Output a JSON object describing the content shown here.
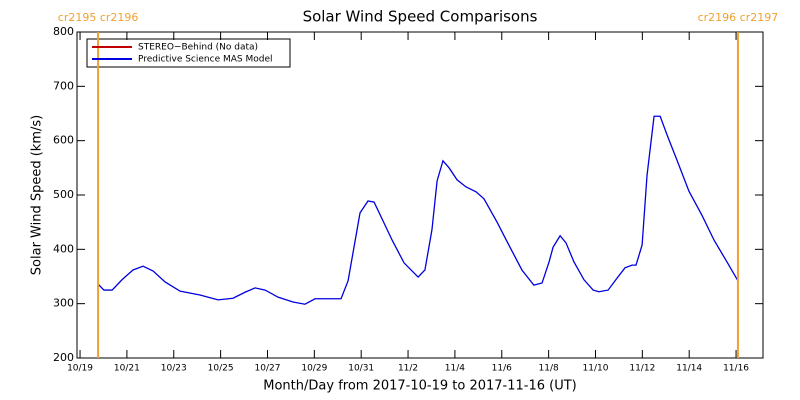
{
  "chart_data": {
    "type": "line",
    "title": "Solar Wind Speed Comparisons",
    "x_label": "Month/Day from 2017-10-19 to 2017-11-16 (UT)",
    "y_label": "Solar Wind Speed (km/s)",
    "xlim": [
      -0.13,
      29.15
    ],
    "xticks": [
      {
        "value": 0,
        "label": "10/19"
      },
      {
        "value": 2,
        "label": "10/21"
      },
      {
        "value": 4,
        "label": "10/23"
      },
      {
        "value": 6,
        "label": "10/25"
      },
      {
        "value": 8,
        "label": "10/27"
      },
      {
        "value": 10,
        "label": "10/29"
      },
      {
        "value": 12,
        "label": "10/31"
      },
      {
        "value": 14,
        "label": "11/2"
      },
      {
        "value": 16,
        "label": "11/4"
      },
      {
        "value": 18,
        "label": "11/6"
      },
      {
        "value": 20,
        "label": "11/8"
      },
      {
        "value": 22,
        "label": "11/10"
      },
      {
        "value": 24,
        "label": "11/12"
      },
      {
        "value": 26,
        "label": "11/14"
      },
      {
        "value": 28,
        "label": "11/16"
      }
    ],
    "ylim": [
      200,
      800
    ],
    "yticks": [
      200,
      300,
      400,
      500,
      600,
      700,
      800
    ],
    "legend": "upper left",
    "annotations": [
      {
        "text": "cr2195 cr2196",
        "x": 0.77,
        "color": "#f0a030"
      },
      {
        "text": "cr2196 cr2197",
        "x": 28.08,
        "color": "#f0a030"
      }
    ],
    "x": [
      0.77,
      1.02,
      1.37,
      1.79,
      2.26,
      2.69,
      3.12,
      3.63,
      4.27,
      5.12,
      5.89,
      6.53,
      7.04,
      7.47,
      7.9,
      8.45,
      9.09,
      9.6,
      10.03,
      10.67,
      11.14,
      11.44,
      11.95,
      12.29,
      12.55,
      13.32,
      13.83,
      14.43,
      14.72,
      15.02,
      15.24,
      15.49,
      15.75,
      16.09,
      16.47,
      16.9,
      17.24,
      17.8,
      18.35,
      18.86,
      19.37,
      19.72,
      20.02,
      20.19,
      20.49,
      20.74,
      21.08,
      21.51,
      21.9,
      22.15,
      22.54,
      22.92,
      23.26,
      23.56,
      23.73,
      23.99,
      24.2,
      24.5,
      24.76,
      25.06,
      25.48,
      25.99,
      26.54,
      27.06,
      27.61,
      28.08
    ],
    "series": [
      {
        "name": "STEREO−Behind (No data)",
        "color": "#c00000",
        "values": [
          null,
          null,
          null,
          null,
          null,
          null,
          null,
          null,
          null,
          null,
          null,
          null,
          null,
          null,
          null,
          null,
          null,
          null,
          null,
          null,
          null,
          null,
          null,
          null,
          null,
          null,
          null,
          null,
          null,
          null,
          null,
          null,
          null,
          null,
          null,
          null,
          null,
          null,
          null,
          null,
          null,
          null,
          null,
          null,
          null,
          null,
          null,
          null,
          null,
          null,
          null,
          null,
          null,
          null,
          null,
          null,
          null,
          null,
          null,
          null,
          null,
          null,
          null,
          null,
          null,
          null
        ]
      },
      {
        "name": "Predictive Science MAS Model",
        "color": "#0000e0",
        "values": [
          336,
          325,
          325,
          344,
          362,
          369,
          360,
          340,
          323,
          316,
          307,
          310,
          321,
          329,
          325,
          312,
          303,
          299,
          309,
          309,
          309,
          342,
          467,
          489,
          487,
          417,
          375,
          349,
          362,
          436,
          526,
          563,
          550,
          528,
          515,
          506,
          493,
          450,
          404,
          362,
          334,
          338,
          377,
          404,
          425,
          412,
          377,
          344,
          325,
          322,
          325,
          347,
          366,
          371,
          371,
          408,
          536,
          645,
          645,
          610,
          564,
          507,
          463,
          417,
          377,
          342
        ]
      }
    ]
  }
}
